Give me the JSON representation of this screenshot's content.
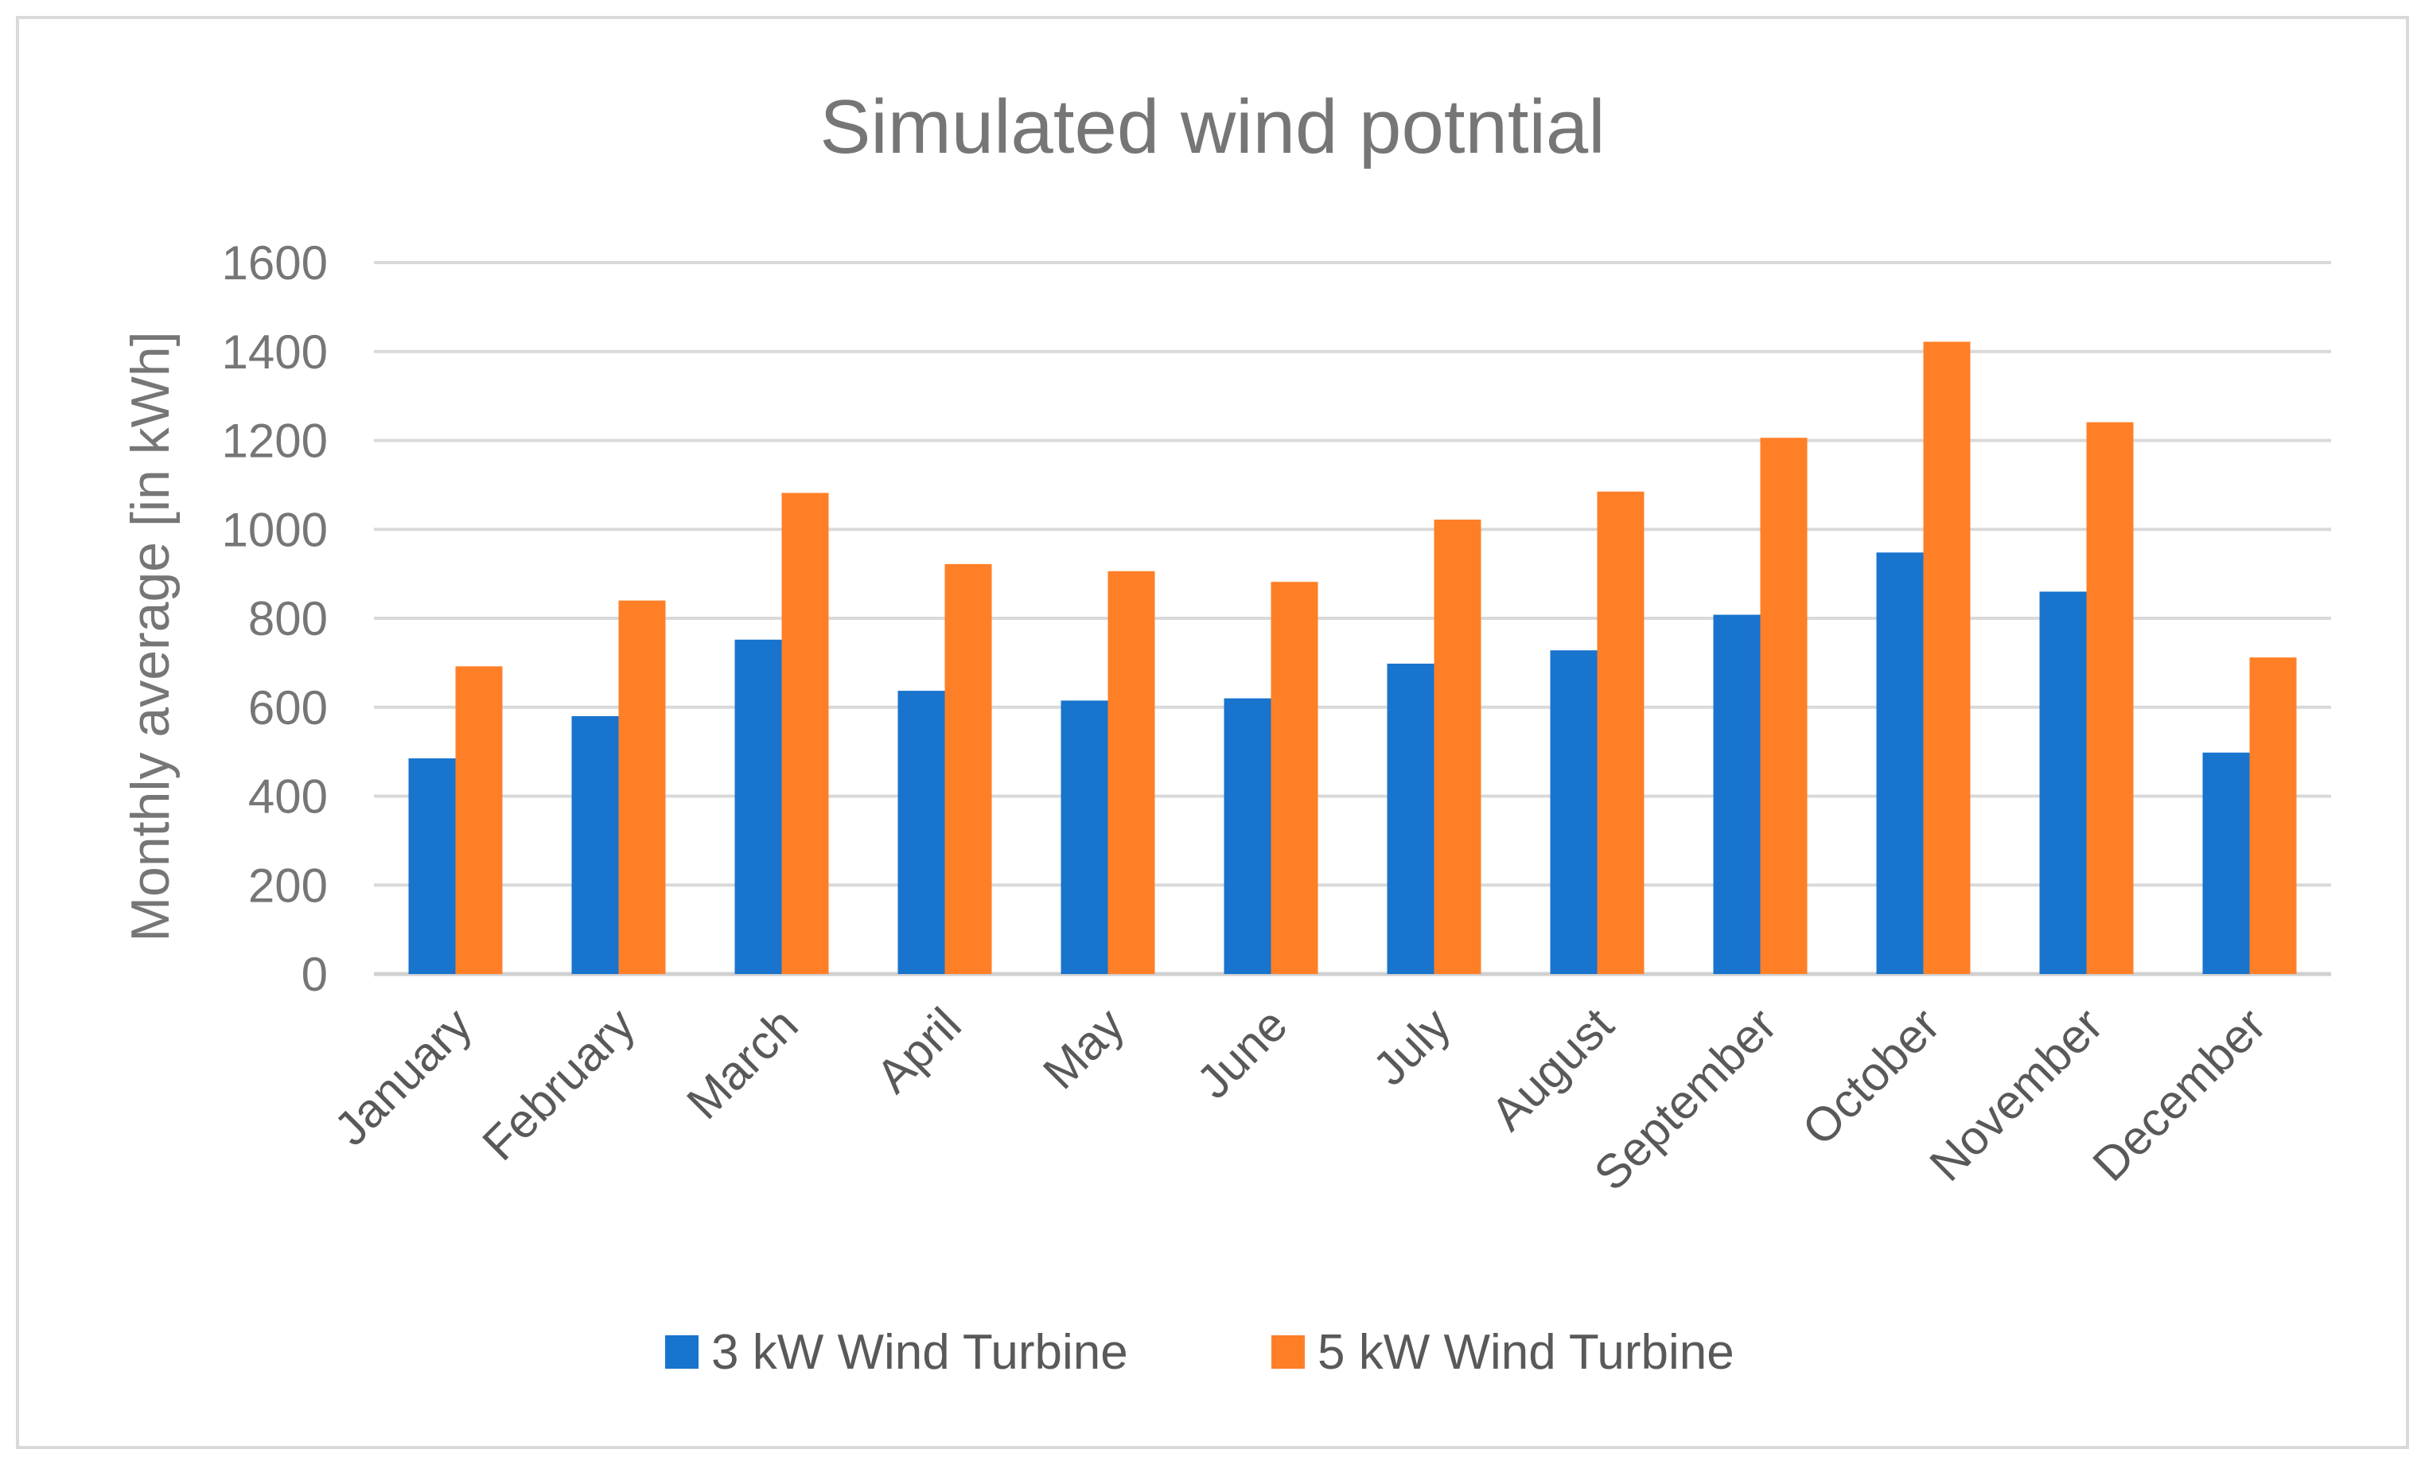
{
  "chart_data": {
    "type": "bar",
    "title": "Simulated wind potntial",
    "xlabel": "",
    "ylabel": "Monthly average [in kWh]",
    "ylim": [
      0,
      1600
    ],
    "yticks": [
      0,
      200,
      400,
      600,
      800,
      1000,
      1200,
      1400,
      1600
    ],
    "grid": true,
    "legend_position": "bottom",
    "categories": [
      "January",
      "February",
      "March",
      "April",
      "May",
      "June",
      "July",
      "August",
      "September",
      "October",
      "November",
      "December"
    ],
    "series": [
      {
        "name": "3 kW Wind Turbine",
        "color": "#1874CD",
        "values": [
          485,
          580,
          752,
          637,
          615,
          620,
          698,
          728,
          808,
          948,
          860,
          498
        ]
      },
      {
        "name": "5 kW Wind Turbine",
        "color": "#FF7F27",
        "values": [
          692,
          840,
          1082,
          922,
          906,
          882,
          1022,
          1085,
          1206,
          1422,
          1241,
          712
        ]
      }
    ]
  }
}
